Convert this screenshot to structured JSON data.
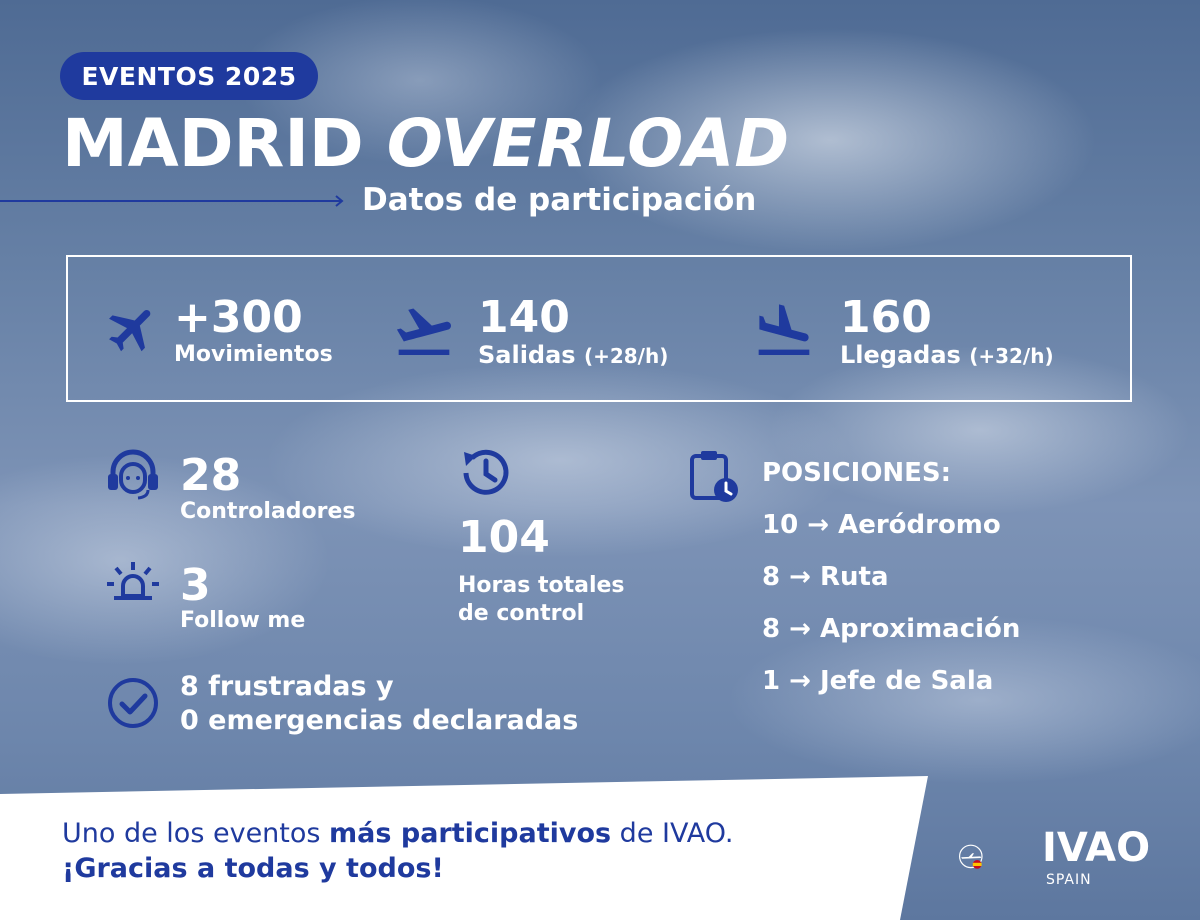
{
  "header": {
    "badge": "EVENTOS 2025",
    "title_main": "MADRID ",
    "title_italic": "OVERLOAD",
    "subtitle": "Datos de participación"
  },
  "summary": {
    "movements": {
      "value": "+300",
      "label": "Movimientos",
      "icon": "airplane-icon"
    },
    "departures": {
      "value": "140",
      "label": "Salidas ",
      "rate": "(+28/h)",
      "icon": "departure-icon"
    },
    "arrivals": {
      "value": "160",
      "label": "Llegadas ",
      "rate": "(+32/h)",
      "icon": "arrival-icon"
    }
  },
  "details": {
    "controllers": {
      "value": "28",
      "label": "Controladores",
      "icon": "headset-icon"
    },
    "follow_me": {
      "value": "3",
      "label": "Follow me",
      "icon": "beacon-light-icon"
    },
    "hours": {
      "value": "104",
      "label_line1": "Horas totales",
      "label_line2": "de control",
      "icon": "history-clock-icon"
    },
    "incidents": {
      "line1": "8 frustradas y",
      "line2": "0 emergencias declaradas",
      "icon": "check-circle-icon"
    }
  },
  "positions": {
    "title": "POSICIONES:",
    "icon": "clipboard-clock-icon",
    "items": [
      {
        "text": "10 → Aeródromo"
      },
      {
        "text": "8  → Ruta"
      },
      {
        "text": "8  → Aproximación"
      },
      {
        "text": "1  → Jefe de Sala"
      }
    ]
  },
  "footer": {
    "line1_pre": "Uno de los eventos ",
    "line1_bold": "más participativos",
    "line1_post": " de IVAO.",
    "line2": "¡Gracias a todas y todos!"
  },
  "logo": {
    "name": "IVAO",
    "region": "SPAIN"
  },
  "colors": {
    "accent": "#1f3a9e",
    "text": "#ffffff"
  }
}
